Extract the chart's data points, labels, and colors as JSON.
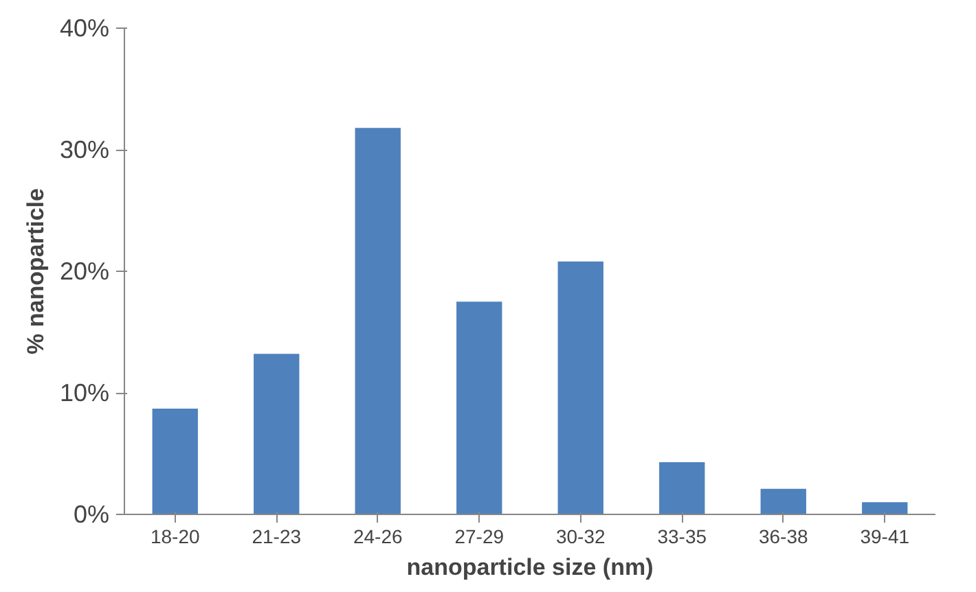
{
  "chart_data": {
    "type": "bar",
    "xlabel": "nanoparticle size (nm)",
    "ylabel": "% nanoparticle",
    "categories": [
      "18-20",
      "21-23",
      "24-26",
      "27-29",
      "30-32",
      "33-35",
      "36-38",
      "39-41"
    ],
    "values": [
      8.7,
      13.2,
      31.8,
      17.5,
      20.8,
      4.3,
      2.1,
      1.0
    ],
    "color": "#4f81bd",
    "ylim": [
      0,
      40
    ],
    "yticks": [
      {
        "value": 0,
        "label": "0%"
      },
      {
        "value": 10,
        "label": "10%"
      },
      {
        "value": 20,
        "label": "20%"
      },
      {
        "value": 30,
        "label": "30%"
      },
      {
        "value": 40,
        "label": "40%"
      }
    ],
    "grid": false
  }
}
